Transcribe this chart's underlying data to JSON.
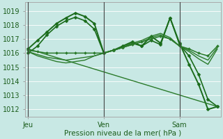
{
  "background_color": "#c8e8e4",
  "grid_color": "#ffffff",
  "xlabel": "Pression niveau de la mer( hPa )",
  "yticks": [
    1012,
    1013,
    1014,
    1015,
    1016,
    1017,
    1018,
    1019
  ],
  "day_labels": [
    "Jeu",
    "Ven",
    "Sam"
  ],
  "day_positions": [
    0,
    24,
    48
  ],
  "xmin": -1,
  "xmax": 61,
  "ymin": 1011.5,
  "ymax": 1019.6,
  "series": [
    {
      "x": [
        0,
        3,
        6,
        9,
        12,
        15,
        18,
        21,
        24,
        27,
        30,
        33,
        36,
        39,
        42,
        45,
        48,
        51,
        54,
        57,
        60
      ],
      "y": [
        1016.3,
        1016.9,
        1017.5,
        1018.1,
        1018.5,
        1018.85,
        1018.6,
        1018.1,
        1016.0,
        1016.2,
        1016.5,
        1016.8,
        1016.5,
        1017.2,
        1016.7,
        1018.5,
        1016.7,
        1015.2,
        1013.8,
        1012.0,
        1012.2
      ],
      "marker": "D",
      "markersize": 2.5,
      "color": "#1a6b1a",
      "linewidth": 1.4
    },
    {
      "x": [
        0,
        3,
        6,
        9,
        12,
        15,
        18,
        21,
        24,
        27,
        30,
        33,
        36,
        39,
        42,
        45,
        48,
        51,
        54,
        57,
        60
      ],
      "y": [
        1016.0,
        1016.5,
        1017.3,
        1017.9,
        1018.3,
        1018.55,
        1018.3,
        1017.7,
        1016.0,
        1016.2,
        1016.4,
        1016.7,
        1016.5,
        1016.9,
        1016.6,
        1018.5,
        1016.6,
        1015.8,
        1014.5,
        1012.7,
        1012.2
      ],
      "marker": "D",
      "markersize": 2.5,
      "color": "#1a6b1a",
      "linewidth": 1.2
    },
    {
      "x": [
        0,
        3,
        6,
        9,
        12,
        15,
        18,
        21,
        24,
        27,
        30,
        33,
        36,
        39,
        42,
        45,
        48,
        51,
        54,
        57,
        60
      ],
      "y": [
        1016.2,
        1016.1,
        1016.0,
        1016.0,
        1016.0,
        1016.0,
        1016.0,
        1016.0,
        1016.0,
        1016.2,
        1016.4,
        1016.6,
        1016.8,
        1017.0,
        1017.2,
        1017.0,
        1016.5,
        1016.3,
        1016.0,
        1015.8,
        1016.5
      ],
      "marker": "D",
      "markersize": 2.0,
      "color": "#2a7a2a",
      "linewidth": 1.1
    },
    {
      "x": [
        0,
        3,
        6,
        9,
        12,
        15,
        18,
        21,
        24,
        27,
        30,
        33,
        36,
        39,
        42,
        45,
        48,
        51,
        54,
        57,
        60
      ],
      "y": [
        1016.1,
        1015.9,
        1015.7,
        1015.6,
        1015.5,
        1015.6,
        1015.7,
        1015.8,
        1016.0,
        1016.2,
        1016.4,
        1016.6,
        1016.8,
        1017.1,
        1017.3,
        1017.0,
        1016.5,
        1016.2,
        1015.8,
        1015.5,
        1016.4
      ],
      "marker": null,
      "markersize": 0,
      "color": "#2a7a2a",
      "linewidth": 1.0
    },
    {
      "x": [
        0,
        3,
        6,
        9,
        12,
        15,
        18,
        21,
        24,
        27,
        30,
        33,
        36,
        39,
        42,
        45,
        48,
        51,
        54,
        57,
        60
      ],
      "y": [
        1016.1,
        1015.8,
        1015.6,
        1015.4,
        1015.3,
        1015.4,
        1015.5,
        1015.8,
        1016.0,
        1016.2,
        1016.4,
        1016.7,
        1016.9,
        1017.2,
        1017.4,
        1017.1,
        1016.5,
        1016.1,
        1015.6,
        1015.2,
        1016.3
      ],
      "marker": null,
      "markersize": 0,
      "color": "#2a7a2a",
      "linewidth": 1.0
    },
    {
      "x": [
        0,
        60
      ],
      "y": [
        1016.3,
        1012.2
      ],
      "marker": null,
      "markersize": 0,
      "color": "#2a7a2a",
      "linewidth": 1.0
    }
  ],
  "figsize": [
    3.2,
    2.0
  ],
  "dpi": 100
}
